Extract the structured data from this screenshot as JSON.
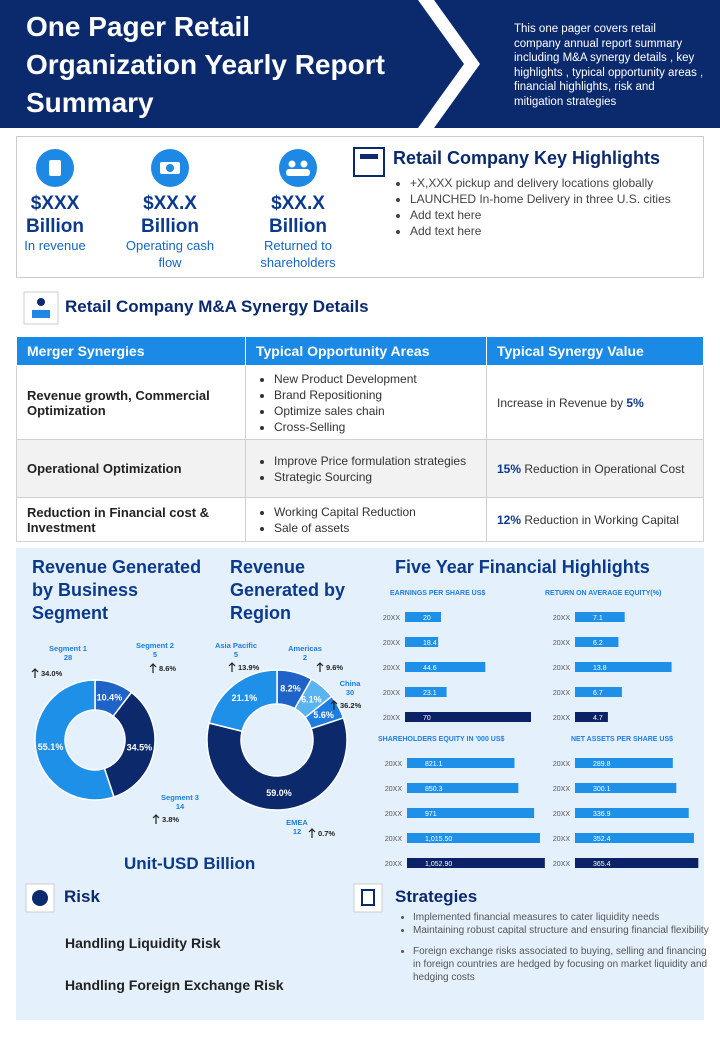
{
  "header": {
    "title": "One Pager Retail Organization Yearly Report Summary",
    "description": "This one pager covers retail company annual report summary including M&A synergy details , key highlights , typical opportunity areas , financial highlights, risk and mitigation strategies"
  },
  "kpis": [
    {
      "value": "$XXX",
      "unit": "Billion",
      "label": "In revenue"
    },
    {
      "value": "$XX.X",
      "unit": "Billion",
      "label": "Operating cash flow"
    },
    {
      "value": "$XX.X",
      "unit": "Billion",
      "label": "Returned to shareholders"
    }
  ],
  "highlights": {
    "title": "Retail Company Key Highlights",
    "items": [
      "+X,XXX  pickup and delivery  locations globally",
      "LAUNCHED  In-home Delivery  in three U.S. cities",
      "Add text here",
      "Add text here"
    ]
  },
  "synergy": {
    "title": "Retail Company M&A Synergy Details",
    "columns": [
      "Merger Synergies",
      "Typical Opportunity Areas",
      "Typical Synergy Value"
    ],
    "rows": [
      {
        "synergy": "Revenue growth, Commercial Optimization",
        "areas": [
          "New Product Development",
          "Brand Repositioning",
          "Optimize sales chain",
          "Cross-Selling"
        ],
        "value": {
          "before": "Increase in Revenue  by",
          "highlight": "5%"
        }
      },
      {
        "synergy": "Operational Optimization",
        "areas": [
          "Improve  Price formulation strategies",
          "Strategic Sourcing"
        ],
        "value": {
          "highlight": "15%",
          "after": "Reduction in Operational Cost"
        }
      },
      {
        "synergy": "Reduction in Financial cost & Investment",
        "areas": [
          "Working Capital Reduction",
          "Sale of assets"
        ],
        "value": {
          "highlight": "12%",
          "after": "Reduction in Working Capital"
        }
      }
    ]
  },
  "financials": {
    "highlights_title": "Five Year Financial Highlights",
    "unit_note": "Unit-USD Billion"
  },
  "chart_data": [
    {
      "type": "donut",
      "title": "Revenue Generated by Business Segment",
      "categories": [
        "Segment 2",
        "Segment 3",
        "Segment 1"
      ],
      "values": [
        10.4,
        34.5,
        55.1
      ],
      "value_labels": [
        "10.4%",
        "34.5%",
        "55.1%"
      ],
      "colors": [
        "#1f63c8",
        "#0c2a6b",
        "#1e90e8"
      ],
      "amounts": [
        5,
        14,
        28
      ],
      "growth": [
        8.6,
        3.8,
        34.0
      ],
      "growth_labels": [
        "8.6%",
        "3.8%",
        "34.0%"
      ]
    },
    {
      "type": "donut",
      "title": "Revenue Generated by Region",
      "categories": [
        null,
        "Americas",
        "China",
        "EMEA",
        "Asia Pacific"
      ],
      "values": [
        8.2,
        6.1,
        5.6,
        59.0,
        21.1
      ],
      "value_labels": [
        "8.2%",
        "6.1%",
        "5.6%",
        "59.0%",
        "21.1%"
      ],
      "colors": [
        "#1f63c8",
        "#5ab4f0",
        "#1e7de0",
        "#0c2a6b",
        "#1e90e8"
      ],
      "amounts": [
        null,
        2,
        30,
        12,
        5
      ],
      "growth": [
        null,
        9.6,
        36.2,
        0.7,
        13.9
      ],
      "growth_labels": [
        null,
        "9.6%",
        "36.2%",
        "0.7%",
        "13.9%"
      ]
    },
    {
      "type": "bar",
      "orientation": "horizontal",
      "title": "EARNINGS PER SHARE US$",
      "categories": [
        "20XX",
        "20XX",
        "20XX",
        "20XX",
        "20XX"
      ],
      "values": [
        20,
        18.4,
        44.6,
        23.1,
        70
      ],
      "xlim": [
        0,
        70
      ],
      "colors": [
        "#1e90e8",
        "#1e90e8",
        "#1e90e8",
        "#1e90e8",
        "#0b2366"
      ]
    },
    {
      "type": "bar",
      "orientation": "horizontal",
      "title": "RETURN ON AVERAGE EQUITY(%)",
      "categories": [
        "20XX",
        "20XX",
        "20XX",
        "20XX",
        "20XX"
      ],
      "values": [
        7.1,
        6.2,
        13.8,
        6.7,
        4.7
      ],
      "xlim": [
        0,
        15
      ],
      "colors": [
        "#1e90e8",
        "#1e90e8",
        "#1e90e8",
        "#1e90e8",
        "#0b2366"
      ]
    },
    {
      "type": "bar",
      "orientation": "horizontal",
      "title": "SHAREHOLDERS EQUITY IN '000 US$",
      "categories": [
        "20XX",
        "20XX",
        "20XX",
        "20XX",
        "20XX"
      ],
      "values": [
        821.1,
        850.3,
        971,
        1015.5,
        1052.9
      ],
      "value_labels": [
        "821.1",
        "850.3",
        "971",
        "1,015.50",
        "1,052.90"
      ],
      "xlim": [
        0,
        1100
      ],
      "colors": [
        "#1e90e8",
        "#1e90e8",
        "#1e90e8",
        "#1e90e8",
        "#0b2366"
      ]
    },
    {
      "type": "bar",
      "orientation": "horizontal",
      "title": "NET ASSETS PER SHARE US$",
      "categories": [
        "20XX",
        "20XX",
        "20XX",
        "20XX",
        "20XX"
      ],
      "values": [
        289.8,
        300.1,
        336.9,
        352.4,
        365.4
      ],
      "xlim": [
        0,
        400
      ],
      "colors": [
        "#1e90e8",
        "#1e90e8",
        "#1e90e8",
        "#1e90e8",
        "#0b2366"
      ]
    }
  ],
  "risk": {
    "title": "Risk",
    "items": [
      "Handling Liquidity Risk",
      "Handling Foreign Exchange Risk"
    ]
  },
  "strategies": {
    "title": "Strategies",
    "items": [
      "Implemented  financial measures to cater liquidity  needs",
      "Maintaining  robust capital structure and ensuring financial flexibility",
      "Foreign exchange risks associated to buying, selling and financing in foreign countries are hedged by focusing on market liquidity and hedging costs"
    ]
  }
}
